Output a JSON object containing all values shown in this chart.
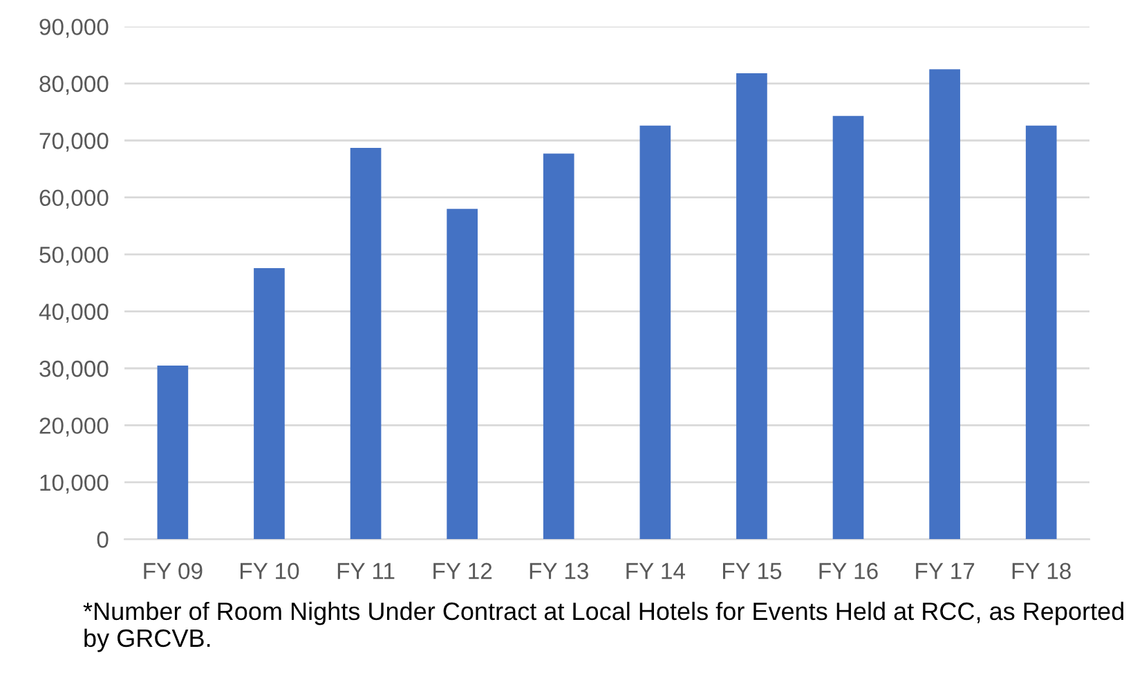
{
  "chart_data": {
    "type": "bar",
    "categories": [
      "FY 09",
      "FY 10",
      "FY 11",
      "FY 12",
      "FY 13",
      "FY 14",
      "FY 15",
      "FY 16",
      "FY 17",
      "FY 18"
    ],
    "values": [
      30500,
      47600,
      68700,
      58000,
      67700,
      72600,
      81800,
      74300,
      82500,
      72600
    ],
    "color": "#4472c4",
    "ylim": [
      0,
      90000
    ],
    "yticks": [
      {
        "value": 0,
        "label": "0"
      },
      {
        "value": 10000,
        "label": "10,000"
      },
      {
        "value": 20000,
        "label": "20,000"
      },
      {
        "value": 30000,
        "label": "30,000"
      },
      {
        "value": 40000,
        "label": "40,000"
      },
      {
        "value": 50000,
        "label": "50,000"
      },
      {
        "value": 60000,
        "label": "60,000"
      },
      {
        "value": 70000,
        "label": "70,000"
      },
      {
        "value": 80000,
        "label": "80,000"
      },
      {
        "value": 90000,
        "label": "90,000"
      }
    ],
    "grid": "y",
    "annotations": [
      "*Number of Room Nights Under Contract at Local Hotels for Events Held at RCC, as Reported by GRCVB."
    ]
  }
}
